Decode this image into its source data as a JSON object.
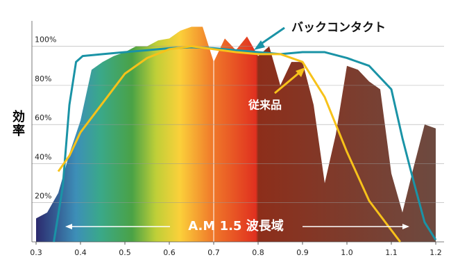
{
  "chart_data": {
    "type": "line",
    "y_label": "効率",
    "annotations": [
      "バックコンタクト",
      "従来品",
      "A.M 1.5 波長域"
    ],
    "xlim": [
      0.3,
      1.2
    ],
    "ylim": [
      0,
      113
    ],
    "xticks": [
      0.3,
      0.4,
      0.5,
      0.6,
      0.7,
      0.8,
      0.9,
      {
        "value": 1,
        "label": "1.0"
      },
      1.1,
      1.2
    ],
    "yticks": [
      {
        "value": 20,
        "label": "20%"
      },
      {
        "value": 40,
        "label": "40%"
      },
      {
        "value": 60,
        "label": "60%"
      },
      {
        "value": 80,
        "label": "80%"
      },
      {
        "value": 100,
        "label": "100%"
      }
    ],
    "grid": true,
    "spectrum": {
      "x": [
        0.3,
        0.325,
        0.35,
        0.375,
        0.4,
        0.425,
        0.45,
        0.475,
        0.5,
        0.525,
        0.55,
        0.575,
        0.6,
        0.625,
        0.65,
        0.675,
        0.7,
        0.725,
        0.75,
        0.775,
        0.8,
        0.825,
        0.85,
        0.875,
        0.9,
        0.925,
        0.95,
        0.975,
        1,
        1.025,
        1.05,
        1.075,
        1.1,
        1.125,
        1.15,
        1.175,
        1.2
      ],
      "values": [
        12,
        15,
        25,
        45,
        62,
        88,
        92,
        95,
        97,
        100,
        100,
        103,
        104,
        108,
        110,
        110,
        92,
        104,
        98,
        105,
        95,
        100,
        80,
        92,
        92,
        70,
        30,
        55,
        90,
        88,
        82,
        78,
        35,
        15,
        38,
        60,
        58
      ]
    },
    "series": [
      {
        "name": "バックコンタクト",
        "color": "#1a93a6",
        "x": [
          0.34,
          0.36,
          0.375,
          0.39,
          0.405,
          0.45,
          0.5,
          0.55,
          0.6,
          0.65,
          0.7,
          0.75,
          0.8,
          0.85,
          0.9,
          0.95,
          1,
          1.05,
          1.1,
          1.125,
          1.15,
          1.175,
          1.2
        ],
        "values": [
          0,
          28,
          70,
          92,
          95,
          96,
          97,
          98,
          99,
          99.5,
          99,
          98,
          97,
          96,
          97,
          97,
          94,
          90,
          78,
          53,
          31,
          10,
          1
        ]
      },
      {
        "name": "従来品",
        "color": "#f7c21a",
        "x": [
          0.35,
          0.375,
          0.4,
          0.45,
          0.5,
          0.55,
          0.6,
          0.65,
          0.7,
          0.75,
          0.8,
          0.85,
          0.9,
          0.95,
          1,
          1.05,
          1.1,
          1.12
        ],
        "values": [
          36,
          44,
          56,
          71,
          86,
          94,
          98.5,
          100,
          98.5,
          97,
          96,
          96,
          92,
          74,
          46,
          21,
          6,
          0
        ]
      }
    ]
  }
}
